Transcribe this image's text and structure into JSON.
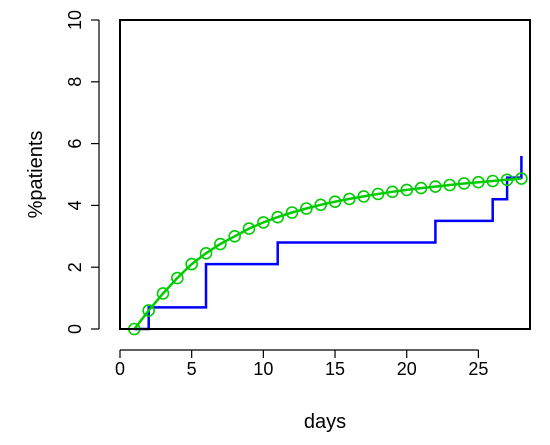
{
  "chart_data": {
    "type": "line",
    "xlabel": "days",
    "ylabel": "%patients",
    "xlim": [
      0,
      28.6
    ],
    "ylim": [
      0,
      10
    ],
    "xticks": [
      0,
      5,
      10,
      15,
      20,
      25
    ],
    "yticks": [
      0,
      2,
      4,
      6,
      8,
      10
    ],
    "grid": false,
    "series": [
      {
        "kind": "step",
        "color": "#0000ff",
        "x": [
          1,
          2,
          2,
          6,
          6,
          11,
          11,
          22,
          22,
          26,
          26,
          27,
          27,
          28,
          28
        ],
        "y": [
          0,
          0,
          0.7,
          0.7,
          2.1,
          2.1,
          2.8,
          2.8,
          3.5,
          3.5,
          4.2,
          4.2,
          4.9,
          4.9,
          5.6
        ]
      },
      {
        "kind": "line-with-circles",
        "color": "#00cc00",
        "x": [
          1,
          2,
          3,
          4,
          5,
          6,
          7,
          8,
          9,
          10,
          11,
          12,
          13,
          14,
          15,
          16,
          17,
          18,
          19,
          20,
          21,
          22,
          23,
          24,
          25,
          26,
          27,
          28
        ],
        "y": [
          0,
          0.6,
          1.15,
          1.65,
          2.1,
          2.45,
          2.75,
          3.0,
          3.25,
          3.45,
          3.62,
          3.77,
          3.9,
          4.02,
          4.12,
          4.21,
          4.29,
          4.37,
          4.44,
          4.5,
          4.56,
          4.61,
          4.66,
          4.71,
          4.75,
          4.79,
          4.83,
          4.87
        ]
      }
    ]
  }
}
